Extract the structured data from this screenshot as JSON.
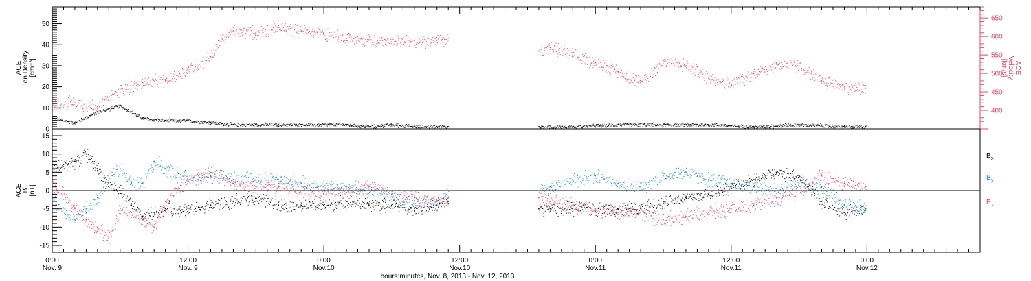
{
  "chart_data": [
    {
      "type": "scatter",
      "panel": "top",
      "left_label": [
        "ACE",
        "Ion Density",
        "[cm⁻³]"
      ],
      "right_label": [
        "ACE",
        "Velocity",
        "[km/s]"
      ],
      "y_left_lim": [
        0,
        58
      ],
      "y_left_ticks": [
        0,
        10,
        20,
        30,
        40,
        50
      ],
      "y_right_lim": [
        350,
        680
      ],
      "y_right_ticks": [
        400,
        450,
        500,
        550,
        600,
        650
      ],
      "series": [
        {
          "name": "Ion Density",
          "axis": "left",
          "color": "#000000",
          "x": [
            0,
            2,
            4,
            6,
            8,
            10,
            12,
            14,
            16,
            18,
            20,
            22,
            24,
            26,
            28,
            30,
            32,
            34,
            35,
            43,
            46,
            50,
            54,
            58,
            62,
            66,
            70,
            71.9
          ],
          "y": [
            5,
            3,
            8,
            11,
            5,
            4,
            4,
            3,
            2,
            2,
            2,
            2,
            2,
            2,
            1,
            2,
            1,
            1,
            1,
            1,
            1,
            2,
            2,
            2,
            1,
            2,
            1,
            1
          ]
        },
        {
          "name": "Velocity",
          "axis": "right",
          "color": "#e8476a",
          "x": [
            0,
            2,
            4,
            6,
            8,
            10,
            12,
            14,
            15,
            16,
            18,
            20,
            22,
            24,
            26,
            28,
            30,
            32,
            34,
            35,
            43,
            44,
            46,
            48,
            50,
            52,
            54,
            56,
            58,
            60,
            62,
            64,
            66,
            68,
            70,
            71.9
          ],
          "y": [
            420,
            420,
            410,
            455,
            475,
            480,
            510,
            545,
            595,
            615,
            610,
            625,
            615,
            610,
            595,
            590,
            585,
            590,
            590,
            590,
            560,
            570,
            550,
            530,
            505,
            475,
            535,
            520,
            490,
            470,
            500,
            525,
            520,
            480,
            465,
            460
          ]
        }
      ]
    },
    {
      "type": "scatter",
      "panel": "bottom",
      "left_label": [
        "ACE",
        "B",
        "[nT]"
      ],
      "y_lim": [
        -15,
        15
      ],
      "y_ticks": [
        -15,
        -10,
        -5,
        0,
        5,
        10,
        15
      ],
      "legend_position": "right",
      "series": [
        {
          "name": "B",
          "subscript": "x",
          "color": "#000000",
          "x": [
            0,
            2,
            3,
            4,
            5,
            6,
            7,
            8,
            9,
            10,
            12,
            14,
            16,
            18,
            20,
            22,
            24,
            26,
            28,
            30,
            32,
            34,
            35,
            43,
            44,
            46,
            48,
            50,
            52,
            54,
            56,
            58,
            60,
            62,
            64,
            66,
            68,
            70,
            71.9
          ],
          "y": [
            6,
            8,
            10,
            6,
            2,
            0,
            -4,
            -7,
            -6,
            -5,
            -5,
            -4,
            -3,
            -2,
            -4,
            -4,
            -4,
            -3,
            -4,
            -4,
            -5,
            -4,
            -3,
            -5,
            -5,
            -5,
            -5,
            -5,
            -5,
            -3,
            -2,
            -1,
            1,
            3,
            5,
            4,
            -3,
            -6,
            -5
          ]
        },
        {
          "name": "B",
          "subscript": "y",
          "color": "#1f86d8",
          "x": [
            0,
            2,
            3,
            4,
            5,
            6,
            7,
            8,
            9,
            10,
            12,
            14,
            16,
            18,
            20,
            22,
            24,
            26,
            28,
            30,
            32,
            34,
            35,
            43,
            44,
            46,
            48,
            50,
            52,
            54,
            56,
            58,
            60,
            62,
            64,
            66,
            68,
            70,
            71.9
          ],
          "y": [
            -3,
            -8,
            -5,
            -2,
            4,
            6,
            2,
            2,
            8,
            6,
            3,
            4,
            3,
            3,
            3,
            2,
            1,
            1,
            0,
            -1,
            -3,
            -3,
            0,
            0,
            1,
            3,
            4,
            2,
            1,
            4,
            5,
            3,
            2,
            1,
            0,
            2,
            1,
            -4,
            -5
          ]
        },
        {
          "name": "B",
          "subscript": "z",
          "color": "#e8476a",
          "x": [
            0,
            2,
            3,
            4,
            5,
            6,
            7,
            8,
            9,
            10,
            12,
            14,
            16,
            18,
            20,
            22,
            24,
            26,
            28,
            30,
            32,
            34,
            35,
            43,
            44,
            46,
            48,
            50,
            52,
            54,
            56,
            58,
            60,
            62,
            64,
            66,
            68,
            70,
            71.9
          ],
          "y": [
            2,
            -5,
            -8,
            -10,
            -13,
            -5,
            -6,
            -8,
            -10,
            -3,
            3,
            5,
            2,
            1,
            1,
            0,
            -1,
            0,
            1,
            -1,
            -2,
            -3,
            -2,
            -2,
            -3,
            -4,
            -5,
            -6,
            -6,
            -8,
            -7,
            -6,
            -5,
            -4,
            -2,
            0,
            4,
            2,
            1
          ]
        }
      ]
    }
  ],
  "x_axis": {
    "range_hours": [
      0,
      82
    ],
    "ticks": [
      {
        "hour": 0,
        "line1": "0:00",
        "line2": "Nov. 9"
      },
      {
        "hour": 12,
        "line1": "12:00",
        "line2": "Nov. 9"
      },
      {
        "hour": 24,
        "line1": "0:00",
        "line2": "Nov.10"
      },
      {
        "hour": 36,
        "line1": "12:00",
        "line2": "Nov.10"
      },
      {
        "hour": 48,
        "line1": "0:00",
        "line2": "Nov.11"
      },
      {
        "hour": 60,
        "line1": "12:00",
        "line2": "Nov.11"
      },
      {
        "hour": 72,
        "line1": "0:00",
        "line2": "Nov.12"
      }
    ],
    "label": "hours:minutes, Nov.  8, 2013 - Nov. 12, 2013"
  }
}
